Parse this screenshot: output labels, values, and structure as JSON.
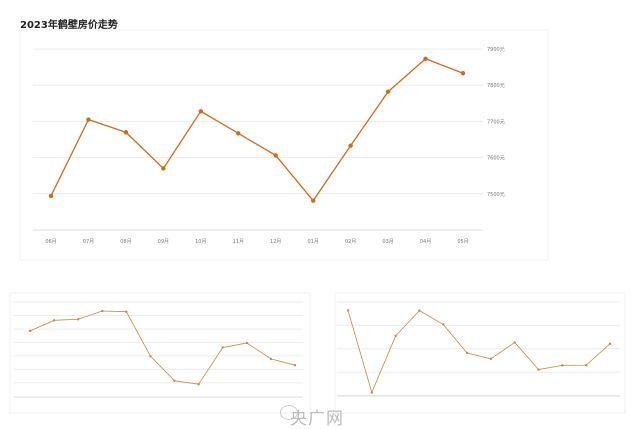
{
  "chart_data": [
    {
      "type": "line",
      "title": "2023年鹤壁房价走势",
      "categories": [
        "06月",
        "07月",
        "08月",
        "09月",
        "10月",
        "11月",
        "12月",
        "01月",
        "02月",
        "03月",
        "04月",
        "05月"
      ],
      "values": [
        7494,
        7705,
        7670,
        7570,
        7728,
        7667,
        7606,
        7481,
        7633,
        7782,
        7873,
        7833
      ],
      "yticks": [
        7500,
        7600,
        7700,
        7800,
        7900
      ],
      "ytick_labels": [
        "7500元",
        "7600元",
        "7700元",
        "7800元",
        "7900元"
      ],
      "ylim": [
        7400,
        7900
      ],
      "grid": true,
      "color": "#d2691e"
    },
    {
      "type": "line",
      "title": "",
      "categories": [
        "",
        "",
        "",
        "",
        "",
        "",
        "",
        "",
        "",
        "",
        "",
        ""
      ],
      "values": [
        3.85,
        4.64,
        4.72,
        5.33,
        5.28,
        1.98,
        0.15,
        -0.1,
        2.62,
        2.96,
        1.78,
        1.31
      ],
      "yticks": [
        0,
        1,
        2,
        3,
        4,
        5,
        6
      ],
      "ytick_labels": [],
      "ylim": [
        -1.05,
        6
      ],
      "grid": true,
      "color": "#c8874a"
    },
    {
      "type": "line",
      "title": "",
      "categories": [
        "",
        "",
        "",
        "",
        "",
        "",
        "",
        "",
        "",
        "",
        "",
        ""
      ],
      "values": [
        3.64,
        0.13,
        2.55,
        3.63,
        3.04,
        1.82,
        1.57,
        2.27,
        1.11,
        1.29,
        1.3,
        2.21
      ],
      "yticks": [
        0,
        1,
        2,
        3,
        4
      ],
      "ytick_labels": [],
      "ylim": [
        -0.02,
        4
      ],
      "grid": true,
      "color": "#c8874a"
    }
  ],
  "watermark": "央广网"
}
